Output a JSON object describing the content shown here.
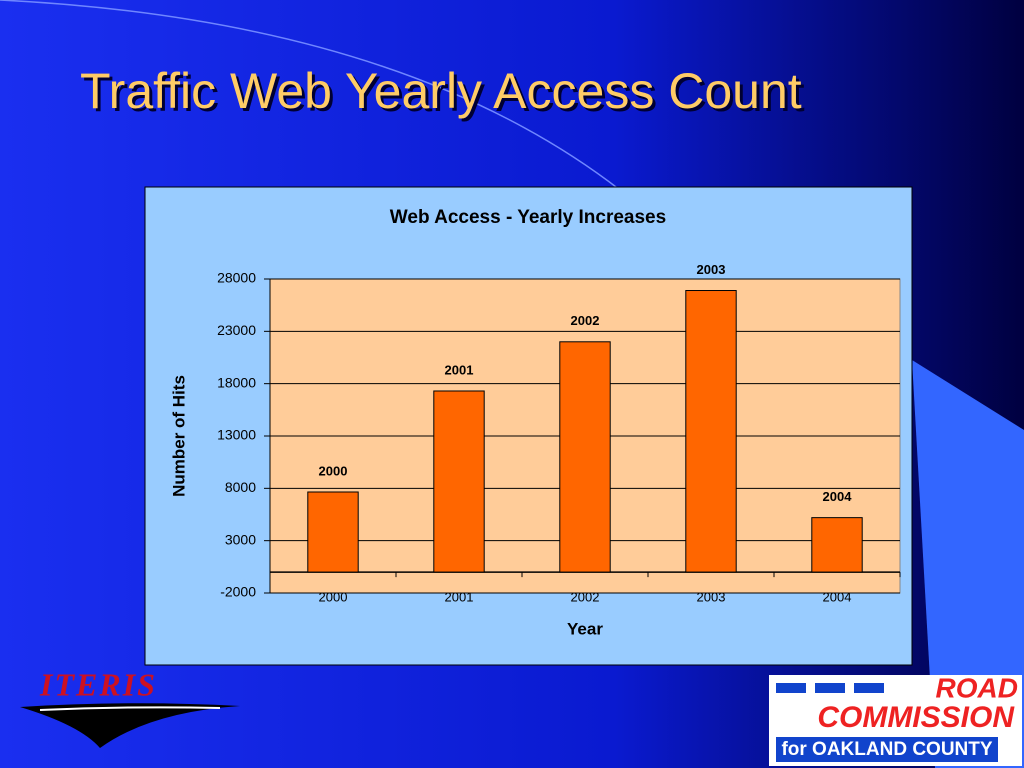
{
  "slide_title": "Traffic Web Yearly Access Count",
  "chart_data": {
    "type": "bar",
    "title": "Web Access - Yearly Increases",
    "x_label": "Year",
    "y_label": "Number of Hits",
    "categories": [
      "2000",
      "2001",
      "2002",
      "2003",
      "2004"
    ],
    "values": [
      7650,
      17300,
      22000,
      26900,
      5200
    ],
    "color": "#ff6600",
    "ylim": [
      -2000,
      28000
    ],
    "yticks": [
      -2000,
      3000,
      8000,
      13000,
      18000,
      23000,
      28000
    ],
    "grid": true
  },
  "logos": {
    "iteris": "ITERIS",
    "road_commission": [
      "ROAD",
      "COMMISSION",
      "for OAKLAND COUNTY"
    ]
  }
}
